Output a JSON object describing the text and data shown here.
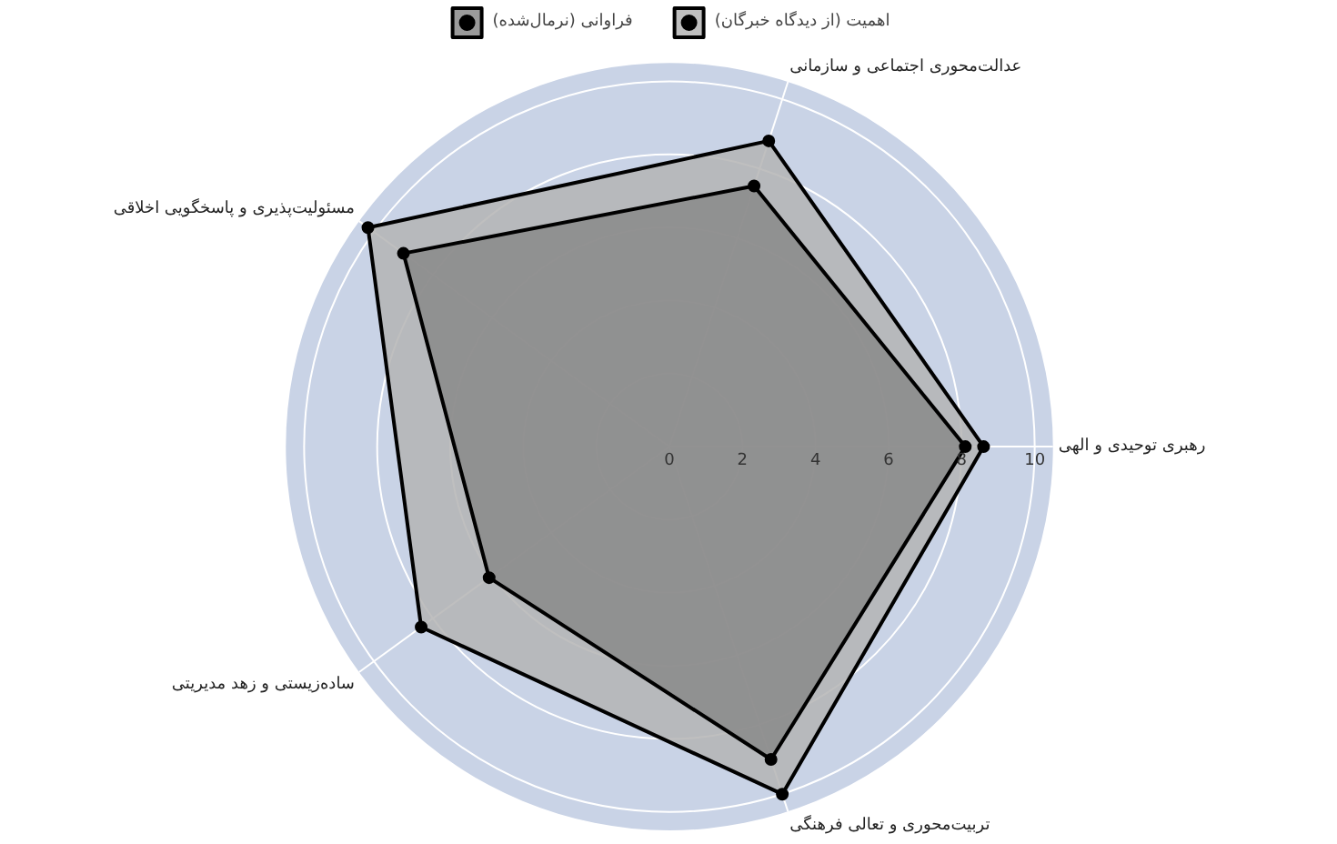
{
  "chart_data": {
    "type": "radar",
    "categories": [
      "عدالت‌محوری اجتماعی و سازمانی",
      "رهبری توحیدی و الهی",
      "تربیت‌محوری و تعالی فرهنگی",
      "ساده‌زیستی و زهد مدیریتی",
      "مسئولیت‌پذیری و پاسخگویی اخلاقی"
    ],
    "series": [
      {
        "name": "فراوانی (نرمال‌شده)",
        "color": "#8a8a8a",
        "values": [
          7.5,
          8.1,
          9.0,
          6.1,
          9.0
        ]
      },
      {
        "name": "اهمیت (از دیدگاه خبرگان)",
        "color": "#b4b4b4",
        "values": [
          8.8,
          8.6,
          10.0,
          8.4,
          10.2
        ]
      }
    ],
    "ylim": [
      0,
      10.5
    ],
    "yticks": [
      0,
      2,
      4,
      6,
      8,
      10
    ],
    "grid": true,
    "legend": "top",
    "marker": "circle"
  }
}
